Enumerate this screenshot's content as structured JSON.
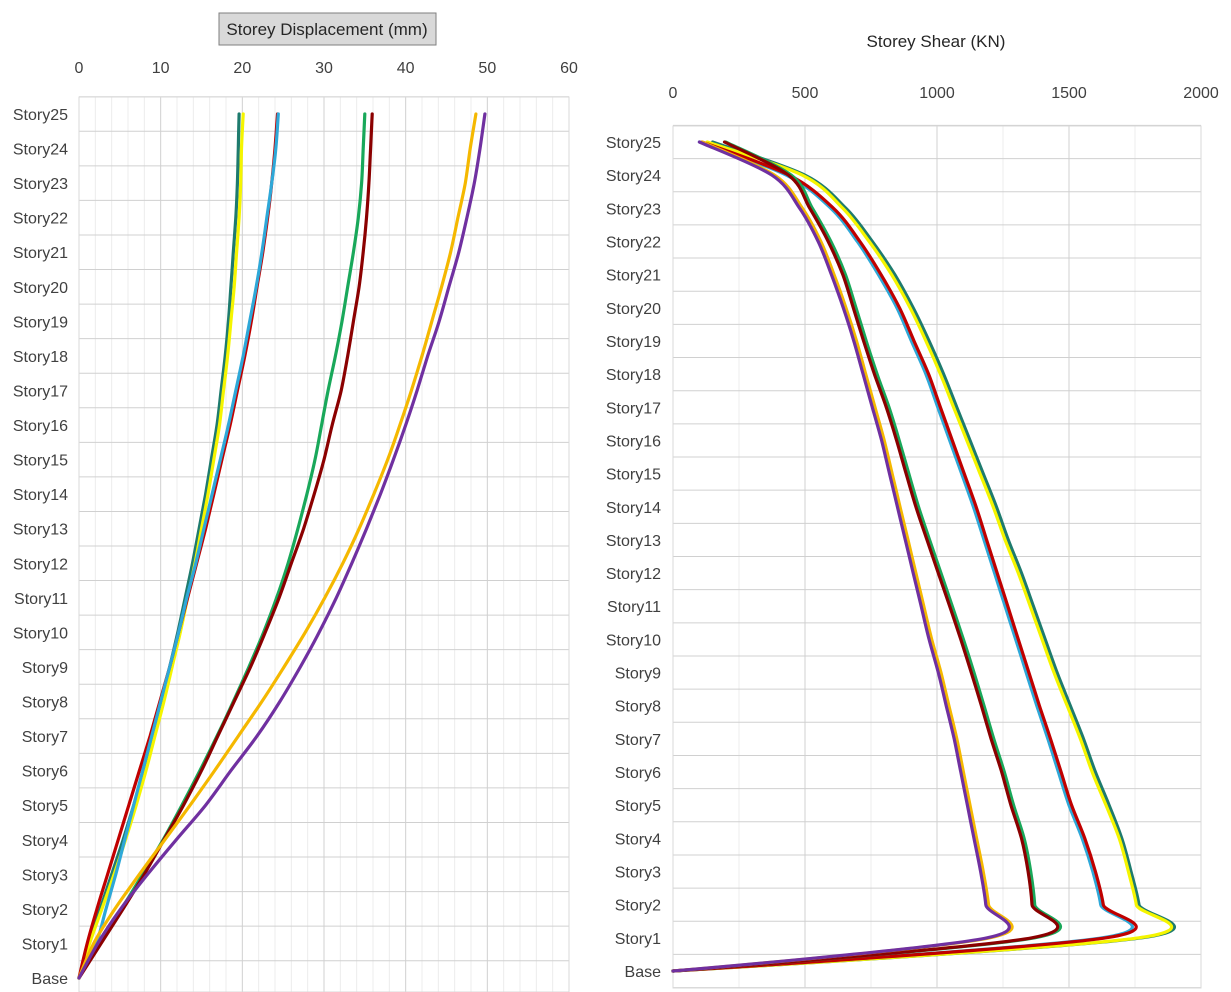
{
  "chart_data": [
    {
      "type": "line",
      "title": "Storey Displacement (mm)",
      "title_boxed": true,
      "x_axis_position": "top",
      "xlabel": "",
      "ylabel": "",
      "xlim": [
        0,
        60
      ],
      "x_ticks": [
        "0",
        "10",
        "20",
        "30",
        "40",
        "50",
        "60"
      ],
      "categories": [
        "Base",
        "Story1",
        "Story2",
        "Story3",
        "Story4",
        "Story5",
        "Story6",
        "Story7",
        "Story8",
        "Story9",
        "Story10",
        "Story11",
        "Story12",
        "Story13",
        "Story14",
        "Story15",
        "Story16",
        "Story17",
        "Story18",
        "Story19",
        "Story20",
        "Story21",
        "Story22",
        "Story23",
        "Story24",
        "Story25"
      ],
      "grid": true,
      "legend": "none",
      "series": [
        {
          "color": "#1E7B6E",
          "values": [
            0,
            1.2,
            2.6,
            4.0,
            5.4,
            6.7,
            7.9,
            9.0,
            10.1,
            11.1,
            12.1,
            13.0,
            13.9,
            14.7,
            15.5,
            16.2,
            16.9,
            17.4,
            17.9,
            18.3,
            18.6,
            18.9,
            19.2,
            19.4,
            19.5,
            19.6
          ]
        },
        {
          "color": "#F5F500",
          "values": [
            0,
            1.3,
            2.8,
            4.3,
            5.7,
            7.0,
            8.2,
            9.3,
            10.4,
            11.4,
            12.4,
            13.3,
            14.2,
            15.0,
            15.8,
            16.5,
            17.2,
            17.7,
            18.2,
            18.6,
            19.0,
            19.3,
            19.6,
            19.8,
            19.9,
            20.1
          ]
        },
        {
          "color": "#C00000",
          "values": [
            0,
            1.0,
            2.2,
            3.5,
            4.8,
            6.1,
            7.4,
            8.7,
            9.9,
            11.1,
            12.2,
            13.3,
            14.4,
            15.5,
            16.5,
            17.5,
            18.5,
            19.4,
            20.3,
            21.1,
            21.8,
            22.5,
            23.1,
            23.6,
            24.0,
            24.3
          ]
        },
        {
          "color": "#2EA8D8",
          "values": [
            0,
            2.1,
            3.3,
            4.5,
            5.6,
            6.7,
            7.8,
            8.9,
            10.0,
            11.1,
            12.2,
            13.2,
            14.3,
            15.3,
            16.3,
            17.3,
            18.3,
            19.2,
            20.1,
            20.9,
            21.7,
            22.4,
            23.0,
            23.6,
            24.1,
            24.4
          ]
        },
        {
          "color": "#19A85A",
          "values": [
            0,
            2.5,
            5.2,
            7.8,
            10.3,
            12.6,
            14.8,
            16.9,
            18.9,
            20.8,
            22.6,
            24.2,
            25.6,
            26.8,
            27.9,
            28.9,
            29.7,
            30.5,
            31.4,
            32.2,
            32.9,
            33.6,
            34.2,
            34.6,
            34.8,
            35.0
          ]
        },
        {
          "color": "#8B0000",
          "values": [
            0,
            2.7,
            5.4,
            8.0,
            10.4,
            12.8,
            15.0,
            17.0,
            19.0,
            21.0,
            22.8,
            24.5,
            26.0,
            27.5,
            28.8,
            30.0,
            31.0,
            32.1,
            32.9,
            33.6,
            34.3,
            34.8,
            35.2,
            35.5,
            35.7,
            35.9
          ]
        },
        {
          "color": "#F5B800",
          "values": [
            0,
            1.8,
            4.4,
            7.4,
            10.5,
            13.6,
            16.6,
            19.5,
            22.4,
            25.1,
            27.7,
            30.1,
            32.3,
            34.3,
            36.1,
            37.8,
            39.3,
            40.7,
            42.0,
            43.2,
            44.4,
            45.5,
            46.4,
            47.3,
            47.9,
            48.6
          ]
        },
        {
          "color": "#7030A0",
          "values": [
            0,
            2.3,
            5.1,
            8.4,
            11.9,
            15.5,
            18.6,
            21.8,
            24.6,
            27.1,
            29.4,
            31.5,
            33.4,
            35.2,
            36.9,
            38.5,
            40.0,
            41.4,
            42.7,
            44.1,
            45.3,
            46.5,
            47.5,
            48.4,
            49.1,
            49.7
          ]
        }
      ]
    },
    {
      "type": "line",
      "title": "Storey Shear (KN)",
      "title_boxed": false,
      "x_axis_position": "top",
      "xlabel": "",
      "ylabel": "",
      "xlim": [
        0,
        2000
      ],
      "x_ticks": [
        "0",
        "500",
        "1000",
        "1500",
        "2000"
      ],
      "categories": [
        "Base",
        "Story1",
        "Story2",
        "Story3",
        "Story4",
        "Story5",
        "Story6",
        "Story7",
        "Story8",
        "Story9",
        "Story10",
        "Story11",
        "Story12",
        "Story13",
        "Story14",
        "Story15",
        "Story16",
        "Story17",
        "Story18",
        "Story19",
        "Story20",
        "Story21",
        "Story22",
        "Story23",
        "Story24",
        "Story25"
      ],
      "grid": true,
      "legend": "none",
      "series": [
        {
          "color": "#1E7B6E",
          "values": [
            0,
            1775,
            1765,
            1735,
            1700,
            1652,
            1600,
            1555,
            1505,
            1455,
            1410,
            1365,
            1320,
            1270,
            1225,
            1175,
            1125,
            1075,
            1025,
            970,
            910,
            840,
            755,
            655,
            500,
            150
          ]
        },
        {
          "color": "#F5F500",
          "values": [
            0,
            1765,
            1755,
            1725,
            1690,
            1640,
            1588,
            1543,
            1493,
            1443,
            1398,
            1353,
            1308,
            1258,
            1213,
            1163,
            1113,
            1063,
            1013,
            958,
            898,
            828,
            743,
            643,
            490,
            130
          ]
        },
        {
          "color": "#2EA8D8",
          "values": [
            0,
            1625,
            1620,
            1590,
            1550,
            1500,
            1460,
            1420,
            1378,
            1338,
            1298,
            1258,
            1218,
            1178,
            1138,
            1093,
            1048,
            1003,
            958,
            903,
            848,
            778,
            698,
            598,
            430,
            100
          ]
        },
        {
          "color": "#C00000",
          "values": [
            0,
            1640,
            1630,
            1600,
            1560,
            1510,
            1470,
            1430,
            1388,
            1348,
            1308,
            1268,
            1228,
            1188,
            1148,
            1103,
            1058,
            1013,
            968,
            913,
            858,
            788,
            708,
            608,
            440,
            110
          ]
        },
        {
          "color": "#19A85A",
          "values": [
            0,
            1370,
            1370,
            1355,
            1330,
            1290,
            1255,
            1215,
            1178,
            1140,
            1100,
            1058,
            1015,
            972,
            930,
            893,
            857,
            818,
            773,
            732,
            693,
            653,
            598,
            528,
            448,
            200
          ]
        },
        {
          "color": "#8B0000",
          "values": [
            0,
            1360,
            1360,
            1345,
            1320,
            1280,
            1245,
            1205,
            1168,
            1130,
            1090,
            1048,
            1005,
            962,
            920,
            883,
            847,
            808,
            763,
            722,
            683,
            643,
            588,
            518,
            438,
            195
          ]
        },
        {
          "color": "#F5B800",
          "values": [
            0,
            1200,
            1195,
            1175,
            1150,
            1125,
            1100,
            1075,
            1045,
            1015,
            980,
            950,
            920,
            890,
            860,
            830,
            800,
            765,
            730,
            695,
            655,
            610,
            560,
            490,
            385,
            110
          ]
        },
        {
          "color": "#7030A0",
          "values": [
            0,
            1190,
            1185,
            1165,
            1140,
            1115,
            1090,
            1065,
            1035,
            1005,
            970,
            940,
            910,
            880,
            850,
            820,
            790,
            755,
            720,
            685,
            645,
            600,
            550,
            480,
            375,
            100
          ]
        }
      ]
    }
  ]
}
